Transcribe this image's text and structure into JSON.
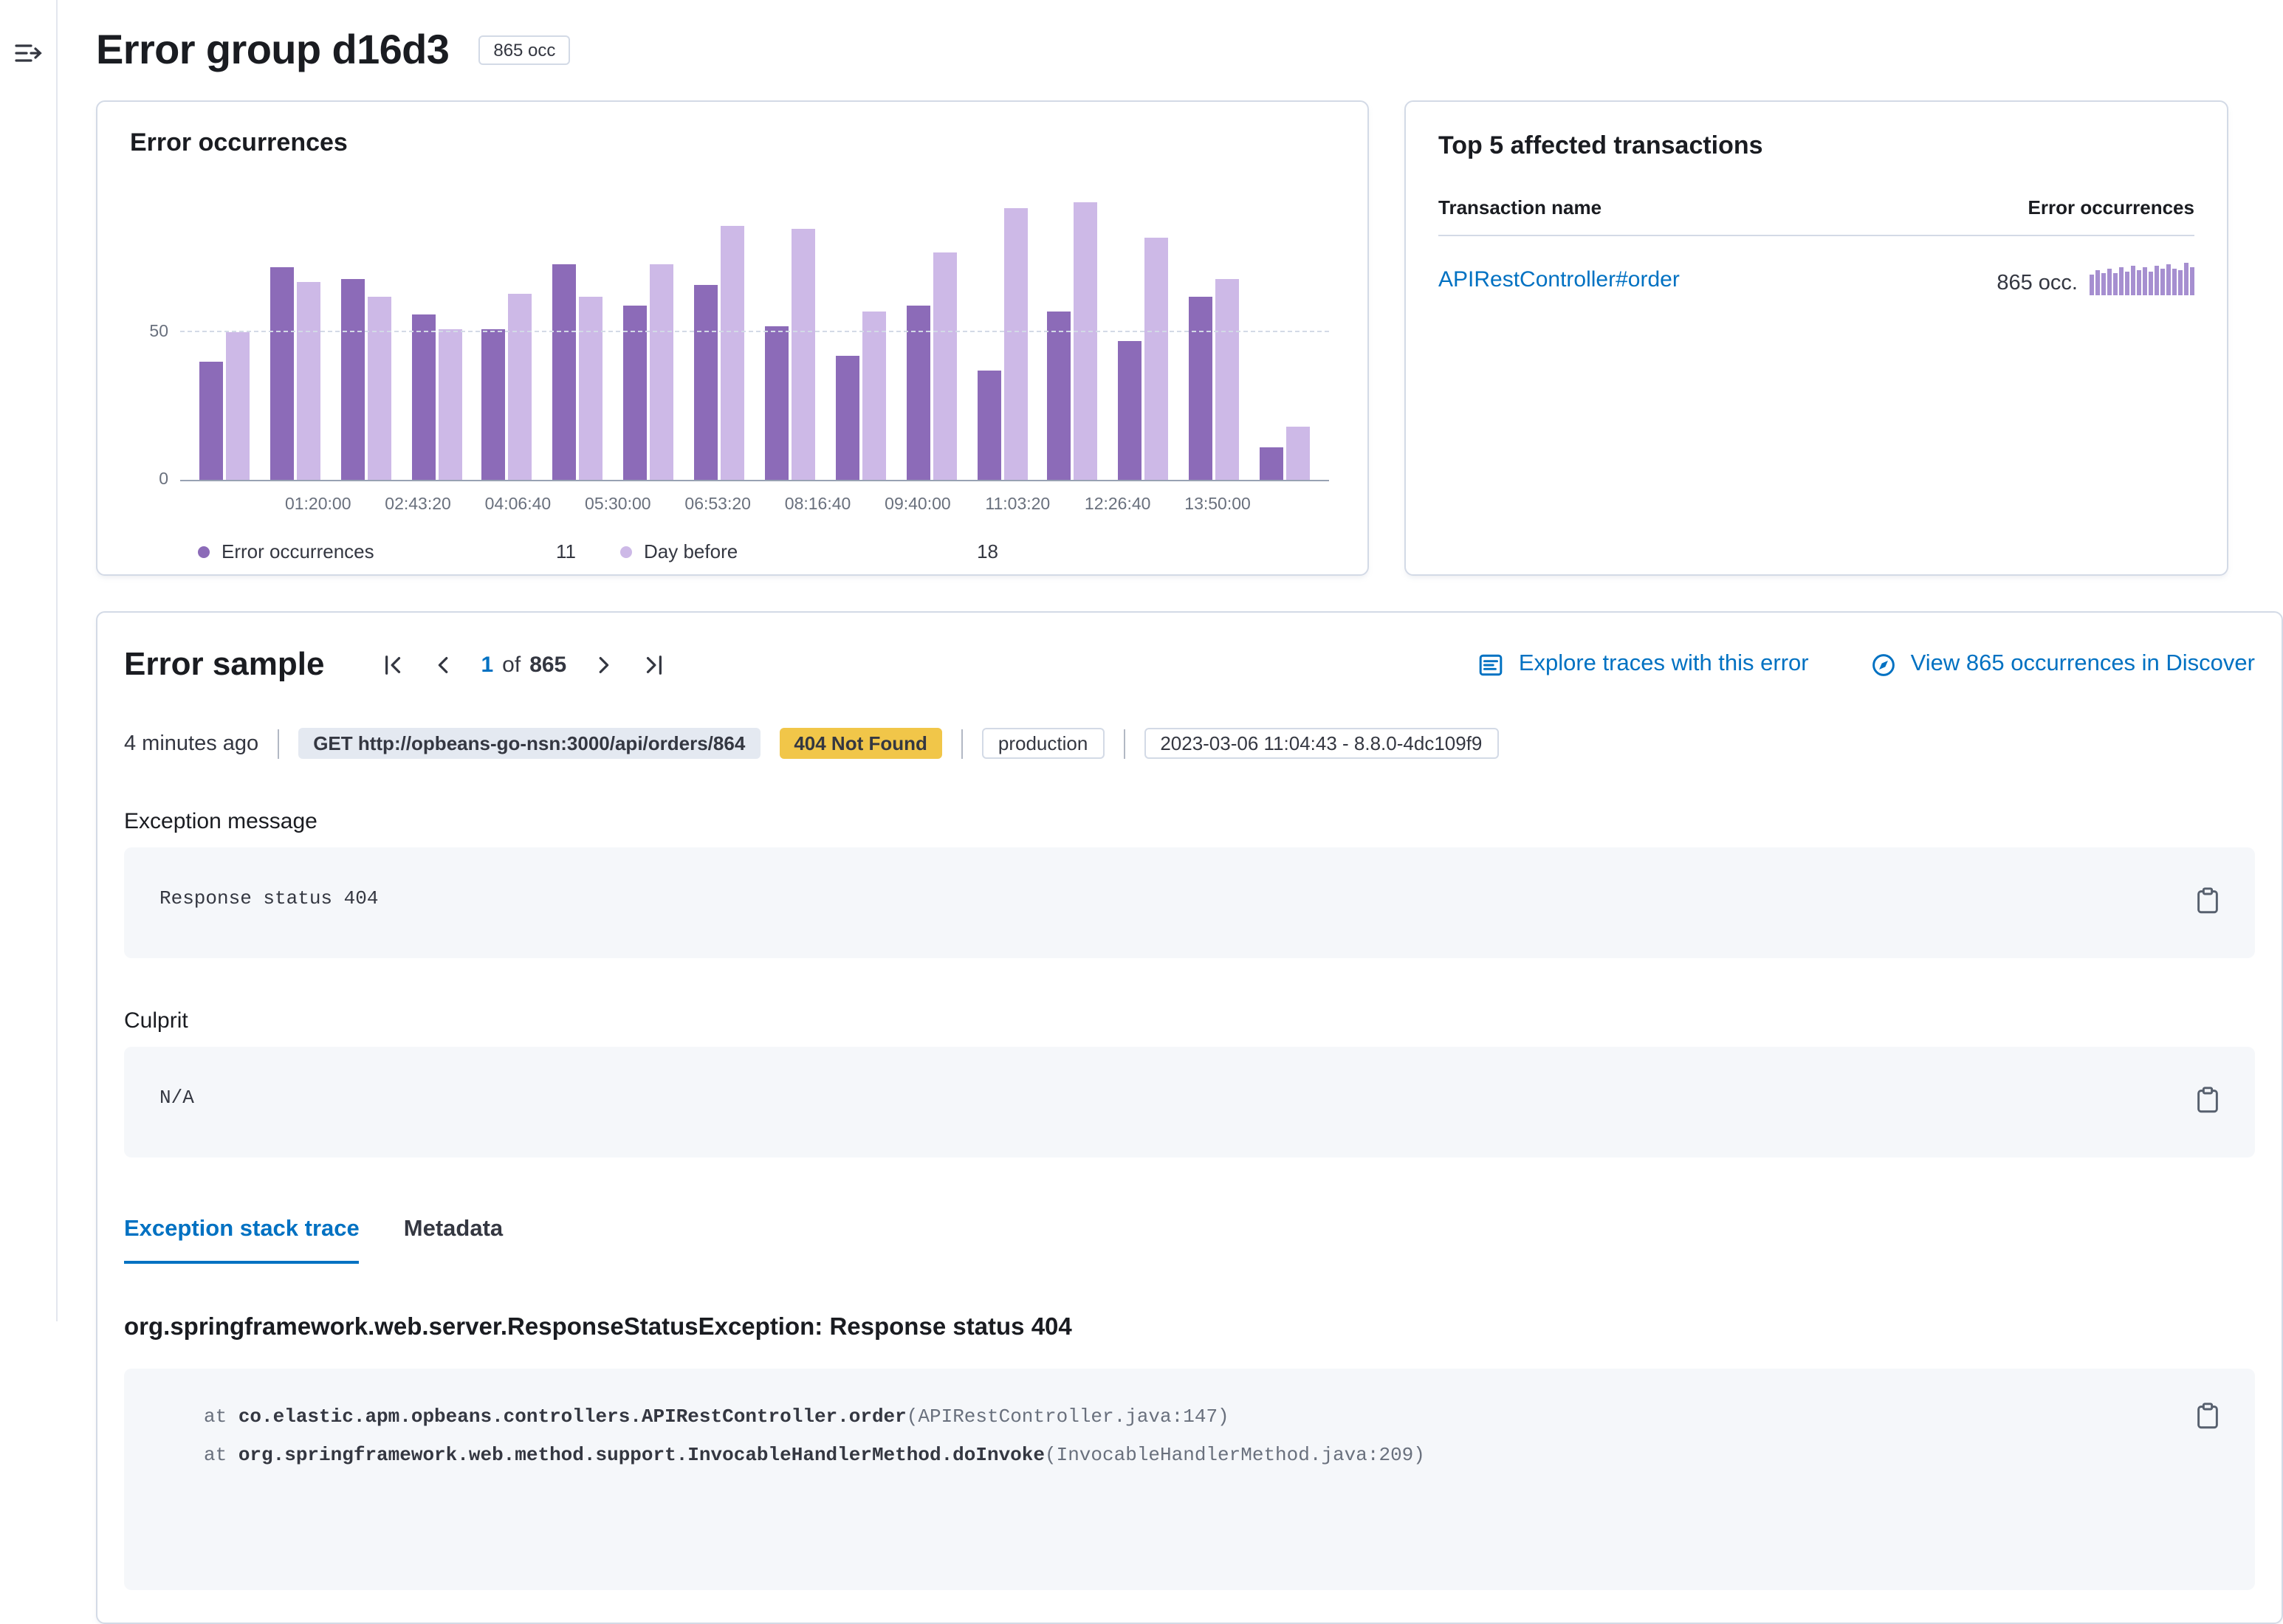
{
  "header": {
    "title": "Error group d16d3",
    "occurrences_badge": "865 occ"
  },
  "colors": {
    "primary_link": "#0071c2",
    "series_current": "#8c6bb8",
    "series_day_before": "#cdb9e7",
    "warning_badge_bg": "#f1c649",
    "gray_badge_bg": "#e4e9f1",
    "sparkline": "#a68fd0"
  },
  "chart_panel": {
    "title": "Error occurrences"
  },
  "chart_data": {
    "type": "bar",
    "title": "Error occurrences",
    "x_tick_labels": [
      "01:20:00",
      "02:43:20",
      "04:06:40",
      "05:30:00",
      "06:53:20",
      "08:16:40",
      "09:40:00",
      "11:03:20",
      "12:26:40",
      "13:50:00"
    ],
    "y_ticks": [
      0,
      50
    ],
    "ylim": [
      0,
      100
    ],
    "grid": "dashed-horizontal",
    "legend_position": "bottom",
    "series": [
      {
        "name": "Error occurrences",
        "color": "#8c6bb8",
        "legend_value": "11",
        "values": [
          40,
          72,
          68,
          56,
          51,
          73,
          59,
          66,
          52,
          42,
          59,
          37,
          57,
          47,
          62,
          11
        ]
      },
      {
        "name": "Day before",
        "color": "#cdb9e7",
        "legend_value": "18",
        "values": [
          50,
          67,
          62,
          51,
          63,
          62,
          73,
          86,
          85,
          57,
          77,
          92,
          94,
          82,
          68,
          18
        ]
      }
    ]
  },
  "transactions_panel": {
    "title": "Top 5 affected transactions",
    "columns": {
      "name": "Transaction name",
      "occurrences": "Error occurrences"
    },
    "rows": [
      {
        "name": "APIRestController#order",
        "occurrences": "865 occ.",
        "sparkline": [
          62,
          75,
          70,
          82,
          68,
          88,
          74,
          90,
          78,
          85,
          72,
          92,
          80,
          95,
          84,
          76,
          98,
          88
        ]
      }
    ]
  },
  "error_sample": {
    "title": "Error sample",
    "pagination": {
      "current": "1",
      "of_label": "of",
      "total": "865"
    },
    "actions": {
      "explore": {
        "label": "Explore traces with this error"
      },
      "discover": {
        "label": "View 865 occurrences in Discover"
      }
    },
    "meta": {
      "time_ago": "4 minutes ago",
      "request_badge": "GET http://opbeans-go-nsn:3000/api/orders/864",
      "status_badge": "404 Not Found",
      "environment_badge": "production",
      "version_badge": "2023-03-06 11:04:43 - 8.8.0-4dc109f9"
    },
    "exception_message": {
      "label": "Exception message",
      "value": "Response status 404"
    },
    "culprit": {
      "label": "Culprit",
      "value": "N/A"
    },
    "tabs": [
      {
        "label": "Exception stack trace",
        "active": true
      },
      {
        "label": "Metadata",
        "active": false
      }
    ],
    "stack": {
      "title": "org.springframework.web.server.ResponseStatusException: Response status 404",
      "frames": [
        {
          "at": "at ",
          "method": "co.elastic.apm.opbeans.controllers.APIRestController.order",
          "location": "(APIRestController.java:147)"
        },
        {
          "at": "at ",
          "method": "org.springframework.web.method.support.InvocableHandlerMethod.doInvoke",
          "location": "(InvocableHandlerMethod.java:209)"
        }
      ]
    }
  }
}
